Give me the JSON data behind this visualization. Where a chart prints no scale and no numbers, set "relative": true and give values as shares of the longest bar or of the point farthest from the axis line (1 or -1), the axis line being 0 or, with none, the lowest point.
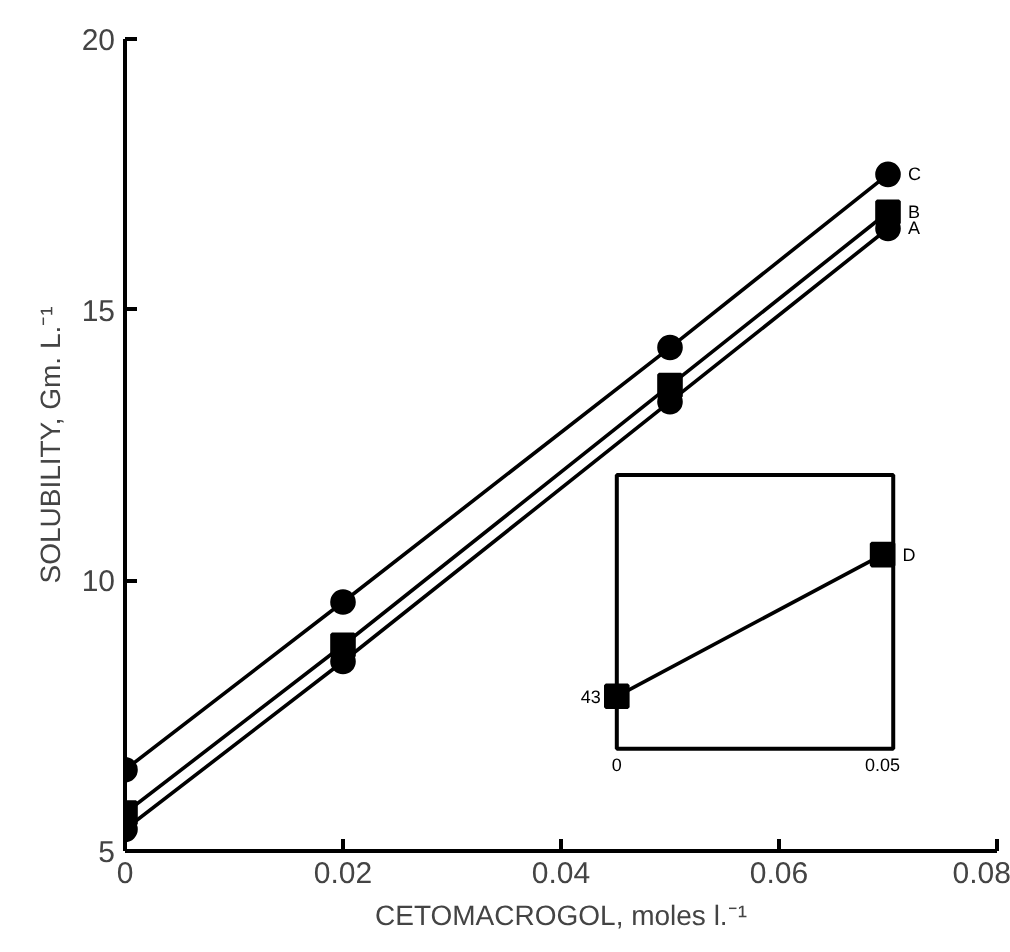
{
  "chart_data": [
    {
      "type": "line",
      "xlabel": "CETOMACROGOL, moles l.⁻¹",
      "ylabel": "SOLUBILITY, Gm. L.⁻¹",
      "x": [
        0,
        0.02,
        0.05,
        0.07
      ],
      "xlim": [
        0,
        0.08
      ],
      "ylim": [
        5,
        20
      ],
      "xticks": [
        0,
        0.02,
        0.04,
        0.06,
        0.08
      ],
      "yticks": [
        5,
        10,
        15,
        20
      ],
      "line_style": "solid",
      "series": [
        {
          "name": "A",
          "color": "#000000",
          "marker": "circle",
          "values": [
            5.4,
            8.5,
            13.3,
            16.5
          ]
        },
        {
          "name": "B",
          "color": "#000000",
          "marker": "square",
          "values": [
            5.7,
            8.8,
            13.6,
            16.8
          ]
        },
        {
          "name": "C",
          "color": "#000000",
          "marker": "circle",
          "values": [
            6.5,
            9.6,
            14.3,
            17.5
          ]
        }
      ]
    },
    {
      "type": "line",
      "relative": true,
      "x": [
        0,
        0.05
      ],
      "xlim": [
        0,
        0.052
      ],
      "xticks": [
        0,
        0.05
      ],
      "line_style": "solid",
      "annotations": [
        {
          "text": "43",
          "x": 0,
          "y": 0.27
        }
      ],
      "series": [
        {
          "name": "D",
          "color": "#000000",
          "marker": "square",
          "values": [
            0.27,
            1
          ]
        }
      ]
    }
  ]
}
